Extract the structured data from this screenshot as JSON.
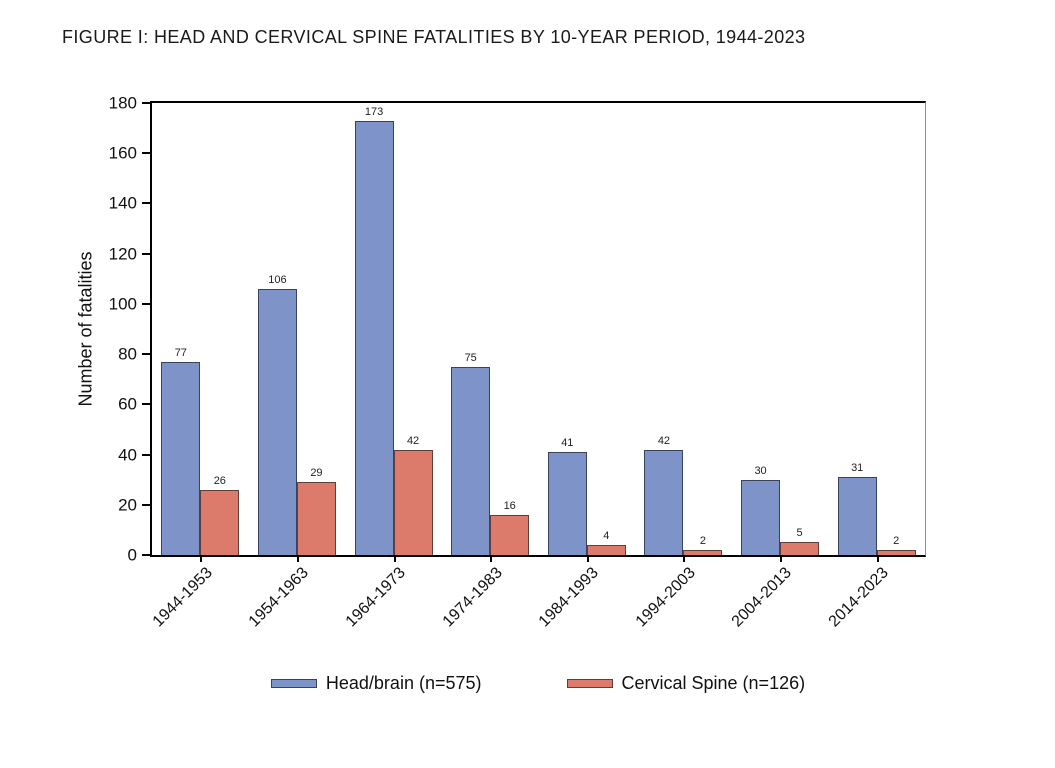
{
  "title": "FIGURE I:  HEAD AND CERVICAL SPINE FATALITIES BY 10-YEAR PERIOD, 1944-2023",
  "chart_data": {
    "type": "bar",
    "title": "FIGURE I:  HEAD AND CERVICAL SPINE FATALITIES BY 10-YEAR PERIOD, 1944-2023",
    "xlabel": "",
    "ylabel": "Number of fatalities",
    "ylim": [
      0,
      180
    ],
    "yticks": [
      0,
      20,
      40,
      60,
      80,
      100,
      120,
      140,
      160,
      180
    ],
    "grid": false,
    "legend_position": "bottom",
    "bar_value_labels": true,
    "categories": [
      "1944-1953",
      "1954-1963",
      "1964-1973",
      "1974-1983",
      "1984-1993",
      "1994-2003",
      "2004-2013",
      "2014-2023"
    ],
    "series": [
      {
        "name": "Head/brain (n=575)",
        "key": "head-brain",
        "color": "#7E93C8",
        "border_color": "#39425F",
        "values": [
          77,
          106,
          173,
          75,
          41,
          42,
          30,
          31
        ]
      },
      {
        "name": "Cervical Spine (n=126)",
        "key": "cervical-spine",
        "color": "#DC7B6C",
        "border_color": "#5E4038",
        "values": [
          26,
          29,
          42,
          16,
          4,
          2,
          5,
          2
        ]
      }
    ]
  }
}
